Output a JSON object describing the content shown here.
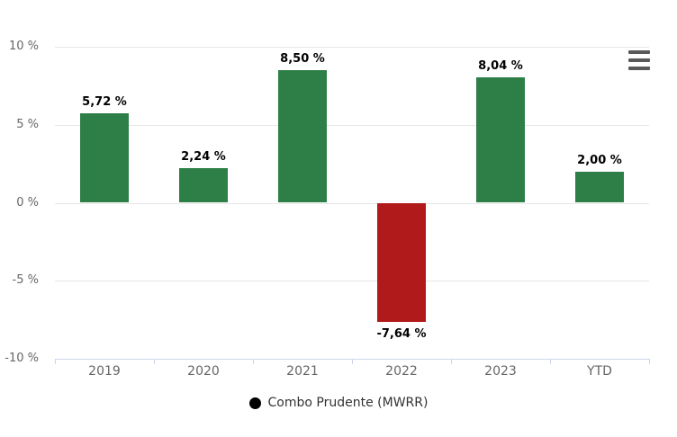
{
  "chart_data": {
    "type": "bar",
    "title": "",
    "xlabel": "",
    "ylabel": "",
    "categories": [
      "2019",
      "2020",
      "2021",
      "2022",
      "2023",
      "YTD"
    ],
    "series": [
      {
        "name": "Combo Prudente (MWRR)",
        "values": [
          5.72,
          2.24,
          8.5,
          -7.64,
          8.04,
          2.0
        ],
        "value_labels": [
          "5,72 %",
          "2,24 %",
          "8,50 %",
          "-7,64 %",
          "8,04 %",
          "2,00 %"
        ]
      }
    ],
    "y_ticks": [
      {
        "value": 10,
        "label": "10 %"
      },
      {
        "value": 5,
        "label": "5 %"
      },
      {
        "value": 0,
        "label": "0 %"
      },
      {
        "value": -5,
        "label": "-5 %"
      },
      {
        "value": -10,
        "label": "-10 %"
      }
    ],
    "ylim": [
      -10,
      10
    ],
    "grid": true,
    "legend_position": "bottom-center",
    "colors": {
      "positive_bar": "#2d7f47",
      "negative_bar": "#b11a1a",
      "gridline": "#e6e6e6",
      "axis_line": "#ccd6eb",
      "tick_label": "#666666",
      "data_label": "#000000"
    }
  },
  "legend": {
    "items": [
      {
        "label": "Combo Prudente (MWRR)",
        "marker": "circle",
        "marker_color": "#000000"
      }
    ]
  },
  "toolbar": {
    "context_menu_icon": "hamburger-menu-icon",
    "icon_color": "#5a5a5a"
  }
}
